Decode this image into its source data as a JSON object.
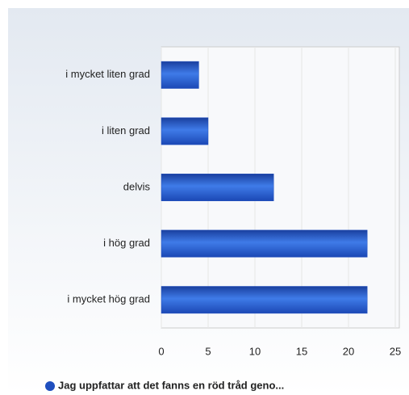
{
  "chart_data": {
    "type": "bar",
    "orientation": "horizontal",
    "categories": [
      "i mycket liten grad",
      "i liten grad",
      "delvis",
      "i hög grad",
      "i mycket hög grad"
    ],
    "series": [
      {
        "name": "Jag uppfattar att det fanns en röd tråd geno...",
        "color": "#1f4fbf",
        "values": [
          4,
          5,
          12,
          22,
          22
        ]
      }
    ],
    "xlim": [
      0,
      25
    ],
    "xticks": [
      0,
      5,
      10,
      15,
      20,
      25
    ],
    "grid": true,
    "legend": "bottom"
  }
}
